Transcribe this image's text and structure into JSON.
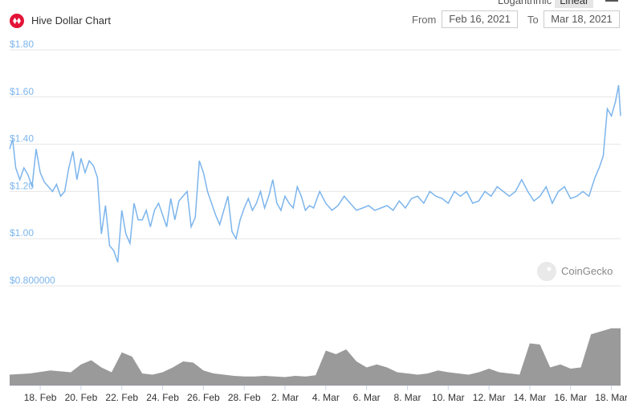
{
  "header": {
    "title": "Hive Dollar Chart",
    "scale_log": "Logarithmic",
    "scale_linear": "Linear",
    "from_label": "From",
    "from_value": "Feb 16, 2021",
    "to_label": "To",
    "to_value": "Mar 18, 2021"
  },
  "watermark": "CoinGecko",
  "colors": {
    "line": "#7cb5ec",
    "volume": "#9a9a9a",
    "brand": "#e31337",
    "grid": "#e6e6e6"
  },
  "chart_data": [
    {
      "type": "line",
      "title": "Hive Dollar Chart",
      "ylabel": "",
      "ylim": [
        0.8,
        1.8
      ],
      "y_ticks": [
        1.8,
        1.6,
        1.4,
        1.2,
        1.0,
        0.8
      ],
      "y_tick_labels": [
        "$1.80",
        "$1.60",
        "$1.40",
        "$1.20",
        "$1.00",
        "$0.800000"
      ],
      "x_ticks": [
        "18. Feb",
        "20. Feb",
        "22. Feb",
        "24. Feb",
        "26. Feb",
        "28. Feb",
        "2. Mar",
        "4. Mar",
        "6. Mar",
        "8. Mar",
        "10. Mar",
        "12. Mar",
        "14. Mar",
        "16. Mar",
        "18. Mar"
      ],
      "x_range_days": [
        0,
        29.95
      ],
      "series": [
        {
          "x": [
            0,
            0.15,
            0.3,
            0.5,
            0.7,
            0.9,
            1.1,
            1.3,
            1.5,
            1.7,
            1.9,
            2.1,
            2.3,
            2.5,
            2.7,
            2.9,
            3.1,
            3.3,
            3.5,
            3.7,
            3.9,
            4.1,
            4.3,
            4.5,
            4.7,
            4.9,
            5.1,
            5.3,
            5.5,
            5.7,
            5.9,
            6.1,
            6.3,
            6.5,
            6.7,
            6.9,
            7.1,
            7.3,
            7.5,
            7.7,
            7.9,
            8.1,
            8.3,
            8.5,
            8.7,
            8.9,
            9.1,
            9.3,
            9.5,
            9.7,
            9.9,
            10.1,
            10.3,
            10.5,
            10.7,
            10.9,
            11.1,
            11.3,
            11.5,
            11.7,
            11.9,
            12.1,
            12.3,
            12.5,
            12.7,
            12.9,
            13.1,
            13.3,
            13.5,
            13.7,
            13.9,
            14.1,
            14.3,
            14.5,
            14.7,
            14.9,
            15.2,
            15.5,
            15.8,
            16.1,
            16.4,
            16.7,
            17.0,
            17.3,
            17.6,
            17.9,
            18.2,
            18.5,
            18.8,
            19.1,
            19.4,
            19.7,
            20.0,
            20.3,
            20.6,
            20.9,
            21.2,
            21.5,
            21.8,
            22.1,
            22.4,
            22.7,
            23.0,
            23.3,
            23.6,
            23.9,
            24.2,
            24.5,
            24.8,
            25.1,
            25.4,
            25.7,
            26.0,
            26.3,
            26.6,
            26.9,
            27.2,
            27.5,
            27.8,
            28.1,
            28.4,
            28.7,
            28.9,
            29.1,
            29.3,
            29.5,
            29.7,
            29.85,
            29.95
          ],
          "y": [
            1.38,
            1.42,
            1.3,
            1.25,
            1.3,
            1.27,
            1.22,
            1.38,
            1.28,
            1.24,
            1.22,
            1.2,
            1.23,
            1.18,
            1.2,
            1.3,
            1.37,
            1.25,
            1.34,
            1.28,
            1.33,
            1.31,
            1.26,
            1.02,
            1.14,
            0.97,
            0.95,
            0.9,
            1.12,
            1.02,
            0.98,
            1.15,
            1.08,
            1.08,
            1.12,
            1.05,
            1.12,
            1.15,
            1.1,
            1.05,
            1.17,
            1.08,
            1.16,
            1.18,
            1.2,
            1.05,
            1.09,
            1.33,
            1.28,
            1.2,
            1.15,
            1.1,
            1.06,
            1.12,
            1.18,
            1.03,
            1.0,
            1.08,
            1.13,
            1.17,
            1.12,
            1.15,
            1.2,
            1.13,
            1.18,
            1.25,
            1.15,
            1.12,
            1.18,
            1.15,
            1.13,
            1.22,
            1.18,
            1.12,
            1.14,
            1.13,
            1.2,
            1.15,
            1.12,
            1.14,
            1.18,
            1.15,
            1.12,
            1.13,
            1.14,
            1.12,
            1.13,
            1.14,
            1.12,
            1.16,
            1.13,
            1.17,
            1.18,
            1.15,
            1.2,
            1.18,
            1.17,
            1.15,
            1.2,
            1.18,
            1.2,
            1.15,
            1.16,
            1.2,
            1.18,
            1.22,
            1.2,
            1.18,
            1.2,
            1.25,
            1.2,
            1.16,
            1.18,
            1.22,
            1.15,
            1.2,
            1.22,
            1.17,
            1.18,
            1.2,
            1.18,
            1.26,
            1.3,
            1.35,
            1.55,
            1.52,
            1.58,
            1.65,
            1.52
          ]
        }
      ]
    },
    {
      "type": "area",
      "title": "",
      "ylabel": "",
      "series": [
        {
          "x": [
            0,
            1,
            2,
            3,
            3.5,
            4,
            4.5,
            5,
            5.5,
            6,
            6.5,
            7,
            7.5,
            8,
            8.5,
            9,
            9.5,
            10,
            10.5,
            11,
            11.5,
            12,
            12.5,
            13,
            13.5,
            14,
            14.5,
            15,
            15.5,
            16,
            16.5,
            17,
            17.5,
            18,
            18.5,
            19,
            19.5,
            20,
            20.5,
            21,
            21.5,
            22,
            22.5,
            23,
            23.5,
            24,
            24.5,
            25,
            25.5,
            26,
            26.5,
            27,
            27.5,
            28,
            28.5,
            29,
            29.5,
            29.95
          ],
          "y": [
            0.18,
            0.2,
            0.25,
            0.22,
            0.35,
            0.42,
            0.3,
            0.22,
            0.55,
            0.48,
            0.2,
            0.18,
            0.22,
            0.3,
            0.4,
            0.38,
            0.25,
            0.2,
            0.18,
            0.16,
            0.15,
            0.15,
            0.16,
            0.15,
            0.14,
            0.16,
            0.15,
            0.17,
            0.58,
            0.52,
            0.6,
            0.4,
            0.3,
            0.35,
            0.3,
            0.22,
            0.2,
            0.18,
            0.2,
            0.25,
            0.22,
            0.2,
            0.18,
            0.22,
            0.28,
            0.22,
            0.2,
            0.18,
            0.7,
            0.68,
            0.3,
            0.35,
            0.28,
            0.3,
            0.85,
            0.9,
            0.95,
            0.95
          ]
        }
      ]
    }
  ]
}
